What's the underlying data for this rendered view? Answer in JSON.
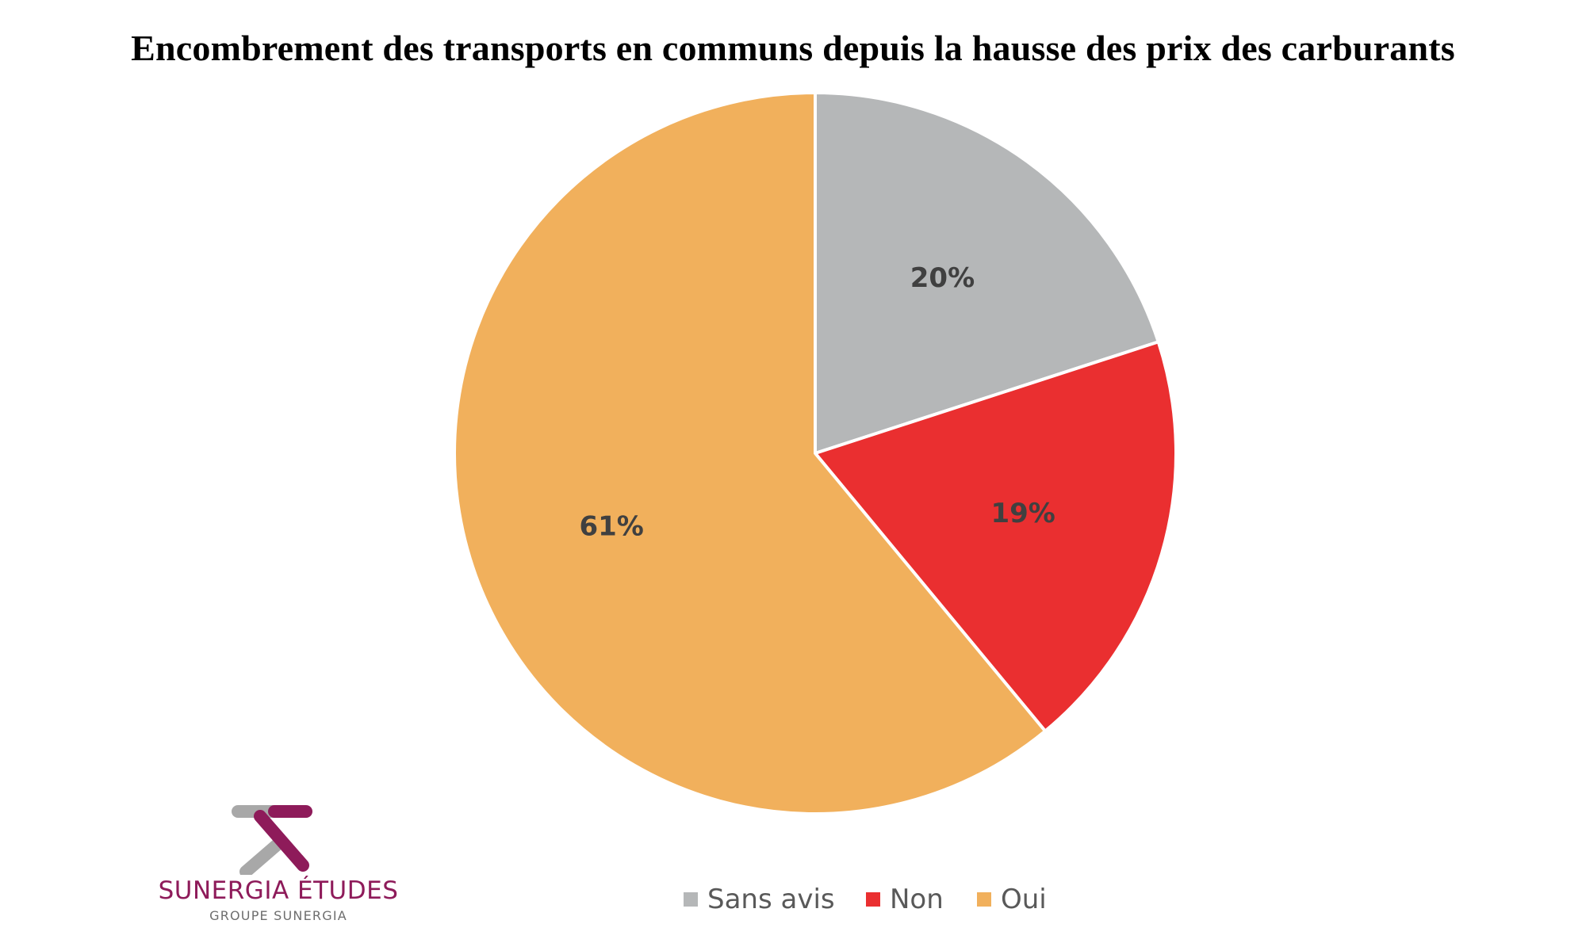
{
  "chart_data": {
    "type": "pie",
    "title": "Encombrement des transports en communs depuis la hausse des prix des carburants",
    "slices": [
      {
        "label": "Sans avis",
        "value": 20,
        "display": "20%",
        "color": "#b5b7b8"
      },
      {
        "label": "Non",
        "value": 19,
        "display": "19%",
        "color": "#ea2f30"
      },
      {
        "label": "Oui",
        "value": 61,
        "display": "61%",
        "color": "#f1b05c"
      }
    ],
    "start": "12 o'clock",
    "direction": "clockwise",
    "legend_position": "bottom"
  },
  "logo": {
    "name": "SUNERGIA ÉTUDES",
    "group": "GROUPE SUNERGIA",
    "colors": {
      "primary": "#8e1b5a",
      "secondary": "#a8a8a8"
    }
  }
}
